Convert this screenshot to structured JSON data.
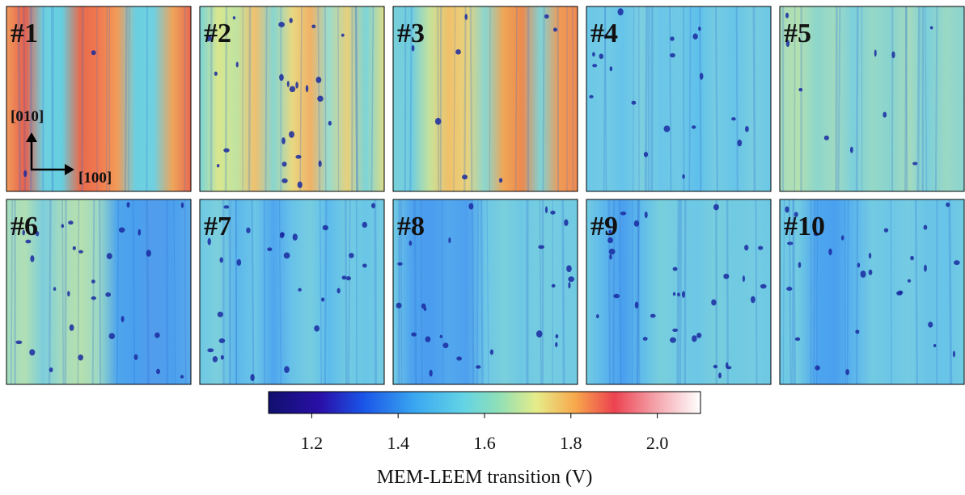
{
  "panels": [
    {
      "label": "#1"
    },
    {
      "label": "#2"
    },
    {
      "label": "#3"
    },
    {
      "label": "#4"
    },
    {
      "label": "#5"
    },
    {
      "label": "#6"
    },
    {
      "label": "#7"
    },
    {
      "label": "#8"
    },
    {
      "label": "#9"
    },
    {
      "label": "#10"
    }
  ],
  "directions": {
    "vertical": "[010]",
    "horizontal": "[100]"
  },
  "colorbar": {
    "label": "MEM-LEEM transition (V)",
    "lim": [
      1.1,
      2.1
    ],
    "ticks": [
      1.2,
      1.4,
      1.6,
      1.8,
      {
        "value": 2.0,
        "label": "2.0"
      }
    ]
  }
}
